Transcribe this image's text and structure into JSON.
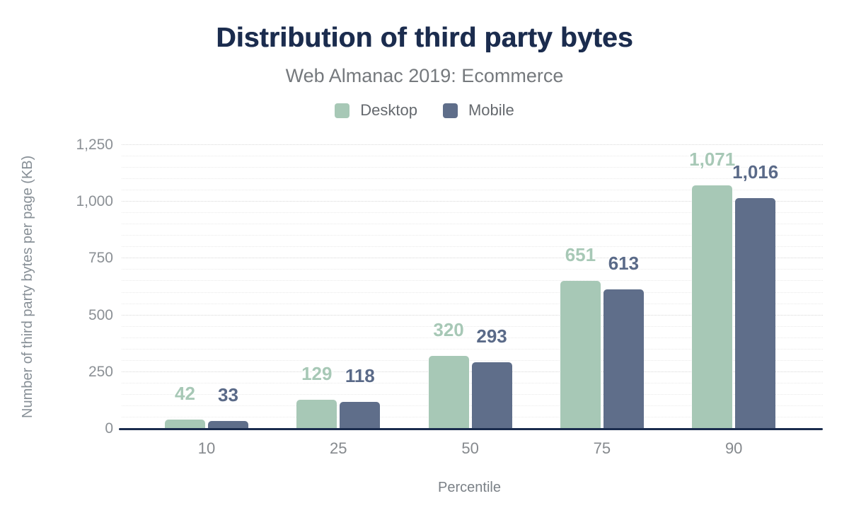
{
  "chart_data": {
    "type": "bar",
    "title": "Distribution of third party bytes",
    "subtitle": "Web Almanac 2019: Ecommerce",
    "xlabel": "Percentile",
    "ylabel": "Number of third party bytes per page (KB)",
    "categories": [
      "10",
      "25",
      "50",
      "75",
      "90"
    ],
    "series": [
      {
        "name": "Desktop",
        "color": "#a7c8b6",
        "label_color": "#a7c8b6",
        "values": [
          42,
          129,
          320,
          651,
          1071
        ]
      },
      {
        "name": "Mobile",
        "color": "#5f6e8a",
        "label_color": "#5a6a88",
        "values": [
          33,
          118,
          293,
          613,
          1016
        ]
      }
    ],
    "ylim": [
      0,
      1250
    ],
    "y_ticks": [
      0,
      250,
      500,
      750,
      1000,
      1250
    ],
    "y_tick_labels": [
      "0",
      "250",
      "500",
      "750",
      "1,000",
      "1,250"
    ],
    "grid": "horizontal-dotted",
    "grid_step_minor": 50,
    "grid_step_major": 250,
    "legend_position": "top",
    "value_labels_shown": true
  },
  "colors": {
    "title_navy": "#1b2c4e",
    "axis_line": "#1b2c4e",
    "desktop_green": "#a7c8b6",
    "mobile_slate": "#5f6e8a",
    "subtitle_gray": "#75797d",
    "tick_gray": "#8b9095",
    "background": "#ffffff"
  }
}
